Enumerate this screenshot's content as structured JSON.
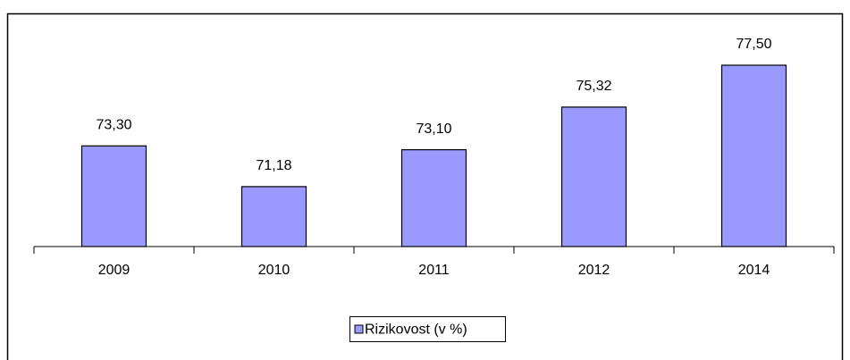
{
  "chart_data": {
    "type": "bar",
    "categories": [
      "2009",
      "2010",
      "2011",
      "2012",
      "2014"
    ],
    "series": [
      {
        "name": "Rizikovost (v %)",
        "color": "#9999ff",
        "values": [
          73.3,
          71.18,
          73.1,
          75.32,
          77.5
        ],
        "value_labels": [
          "73,30",
          "71,18",
          "73,10",
          "75,32",
          "77,50"
        ]
      }
    ],
    "ylim": [
      68.06,
      78.5
    ],
    "legend": "bottom"
  }
}
